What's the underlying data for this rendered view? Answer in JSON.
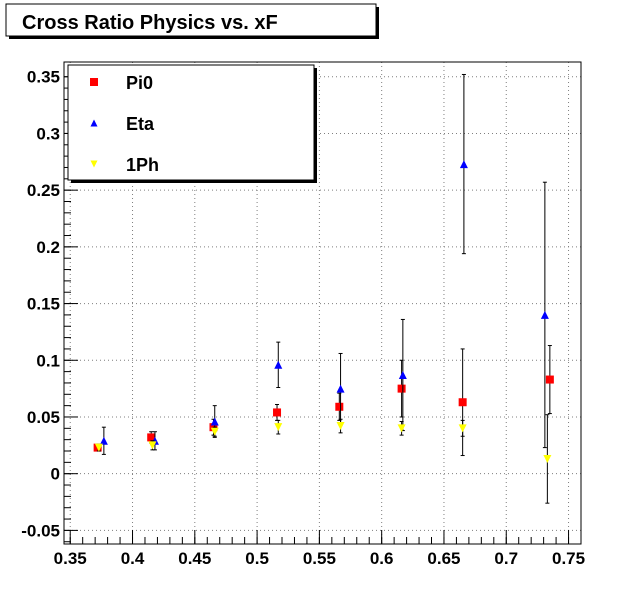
{
  "window": {
    "title": "Cross Ratio Physics vs. xF"
  },
  "chart_data": {
    "type": "scatter",
    "title": "Cross Ratio Physics vs. xF",
    "xlabel": "",
    "ylabel": "",
    "xlim": [
      0.345,
      0.76
    ],
    "ylim": [
      -0.062,
      0.363
    ],
    "x_ticks": [
      "0.35",
      "0.4",
      "0.45",
      "0.5",
      "0.55",
      "0.6",
      "0.65",
      "0.7",
      "0.75"
    ],
    "x_tick_values": [
      0.35,
      0.4,
      0.45,
      0.5,
      0.55,
      0.6,
      0.65,
      0.7,
      0.75
    ],
    "y_ticks": [
      "-0.05",
      "0",
      "0.05",
      "0.1",
      "0.15",
      "0.2",
      "0.25",
      "0.3",
      "0.35"
    ],
    "y_tick_values": [
      -0.05,
      0,
      0.05,
      0.1,
      0.15,
      0.2,
      0.25,
      0.3,
      0.35
    ],
    "grid": true,
    "legend_position": "top-left",
    "series": [
      {
        "name": "Pi0",
        "marker": "square",
        "color": "#ff0000",
        "points": [
          {
            "x": 0.372,
            "y": 0.023,
            "err": 0.003
          },
          {
            "x": 0.415,
            "y": 0.032,
            "err": 0.005
          },
          {
            "x": 0.465,
            "y": 0.041,
            "err": 0.007
          },
          {
            "x": 0.516,
            "y": 0.054,
            "err": 0.007
          },
          {
            "x": 0.566,
            "y": 0.059,
            "err": 0.012
          },
          {
            "x": 0.616,
            "y": 0.075,
            "err": 0.025
          },
          {
            "x": 0.665,
            "y": 0.063,
            "err": 0.047
          },
          {
            "x": 0.735,
            "y": 0.083,
            "err": 0.03
          }
        ]
      },
      {
        "name": "Eta",
        "marker": "triangle-up",
        "color": "#0000ff",
        "points": [
          {
            "x": 0.377,
            "y": 0.029,
            "err": 0.012
          },
          {
            "x": 0.418,
            "y": 0.029,
            "err": 0.008
          },
          {
            "x": 0.466,
            "y": 0.046,
            "err": 0.014
          },
          {
            "x": 0.517,
            "y": 0.096,
            "err": 0.02
          },
          {
            "x": 0.567,
            "y": 0.075,
            "err": 0.031
          },
          {
            "x": 0.617,
            "y": 0.087,
            "err": 0.049
          },
          {
            "x": 0.666,
            "y": 0.273,
            "err": 0.079
          },
          {
            "x": 0.731,
            "y": 0.14,
            "err": 0.117
          }
        ]
      },
      {
        "name": "1Ph",
        "marker": "triangle-down",
        "color": "#ffff00",
        "points": [
          {
            "x": 0.373,
            "y": 0.023,
            "err": 0.003
          },
          {
            "x": 0.416,
            "y": 0.025,
            "err": 0.004
          },
          {
            "x": 0.466,
            "y": 0.037,
            "err": 0.004
          },
          {
            "x": 0.517,
            "y": 0.041,
            "err": 0.006
          },
          {
            "x": 0.567,
            "y": 0.042,
            "err": 0.006
          },
          {
            "x": 0.616,
            "y": 0.04,
            "err": 0.006
          },
          {
            "x": 0.665,
            "y": 0.04,
            "err": 0.007
          },
          {
            "x": 0.733,
            "y": 0.013,
            "err": 0.039
          }
        ]
      }
    ]
  }
}
